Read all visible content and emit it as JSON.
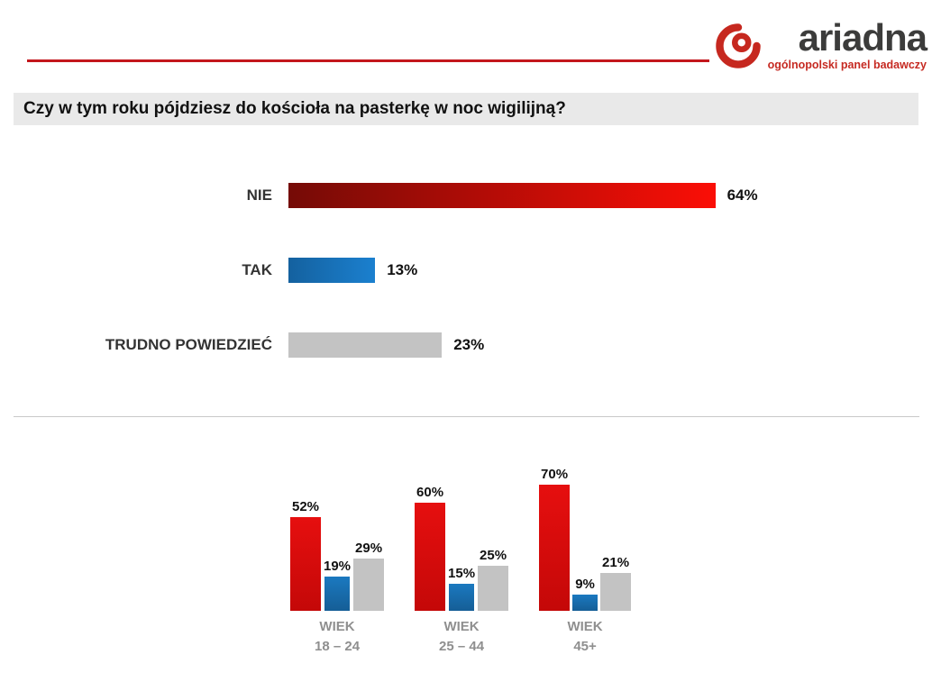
{
  "logo": {
    "brand": "ariadna",
    "subtitle": "ogólnopolski panel badawczy"
  },
  "title": "Czy w tym roku pójdziesz do kościoła na pasterkę w noc wigilijną?",
  "colors": {
    "accent_red": "#c3161c",
    "bar_red_dark": "#750b06",
    "bar_red_bright": "#fb0e06",
    "bar_blue": "#1b75bc",
    "bar_gray": "#c3c3c3",
    "title_bg": "#e9e9e9",
    "logo_red": "#c62a22",
    "group_label_gray": "#8f8f8f"
  },
  "chart_data": [
    {
      "type": "bar",
      "orientation": "horizontal",
      "title": "Czy w tym roku pójdziesz do kościoła na pasterkę w noc wigilijną?",
      "categories": [
        "NIE",
        "TAK",
        "TRUDNO POWIEDZIEĆ"
      ],
      "values": [
        64,
        13,
        23
      ],
      "value_labels": [
        "64%",
        "13%",
        "23%"
      ],
      "xlim": [
        0,
        100
      ],
      "grid": false,
      "legend": false
    },
    {
      "type": "bar",
      "orientation": "vertical",
      "series_names": [
        "NIE",
        "TAK",
        "TRUDNO POWIEDZIEĆ"
      ],
      "groups": [
        {
          "label_line1": "WIEK",
          "label_line2": "18 – 24",
          "values": [
            52,
            19,
            29
          ],
          "value_labels": [
            "52%",
            "19%",
            "29%"
          ]
        },
        {
          "label_line1": "WIEK",
          "label_line2": "25 – 44",
          "values": [
            60,
            15,
            25
          ],
          "value_labels": [
            "60%",
            "15%",
            "25%"
          ]
        },
        {
          "label_line1": "WIEK",
          "label_line2": "45+",
          "values": [
            70,
            9,
            21
          ],
          "value_labels": [
            "70%",
            "9%",
            "21%"
          ]
        }
      ],
      "ylim": [
        0,
        100
      ],
      "grid": false,
      "legend": false
    }
  ]
}
